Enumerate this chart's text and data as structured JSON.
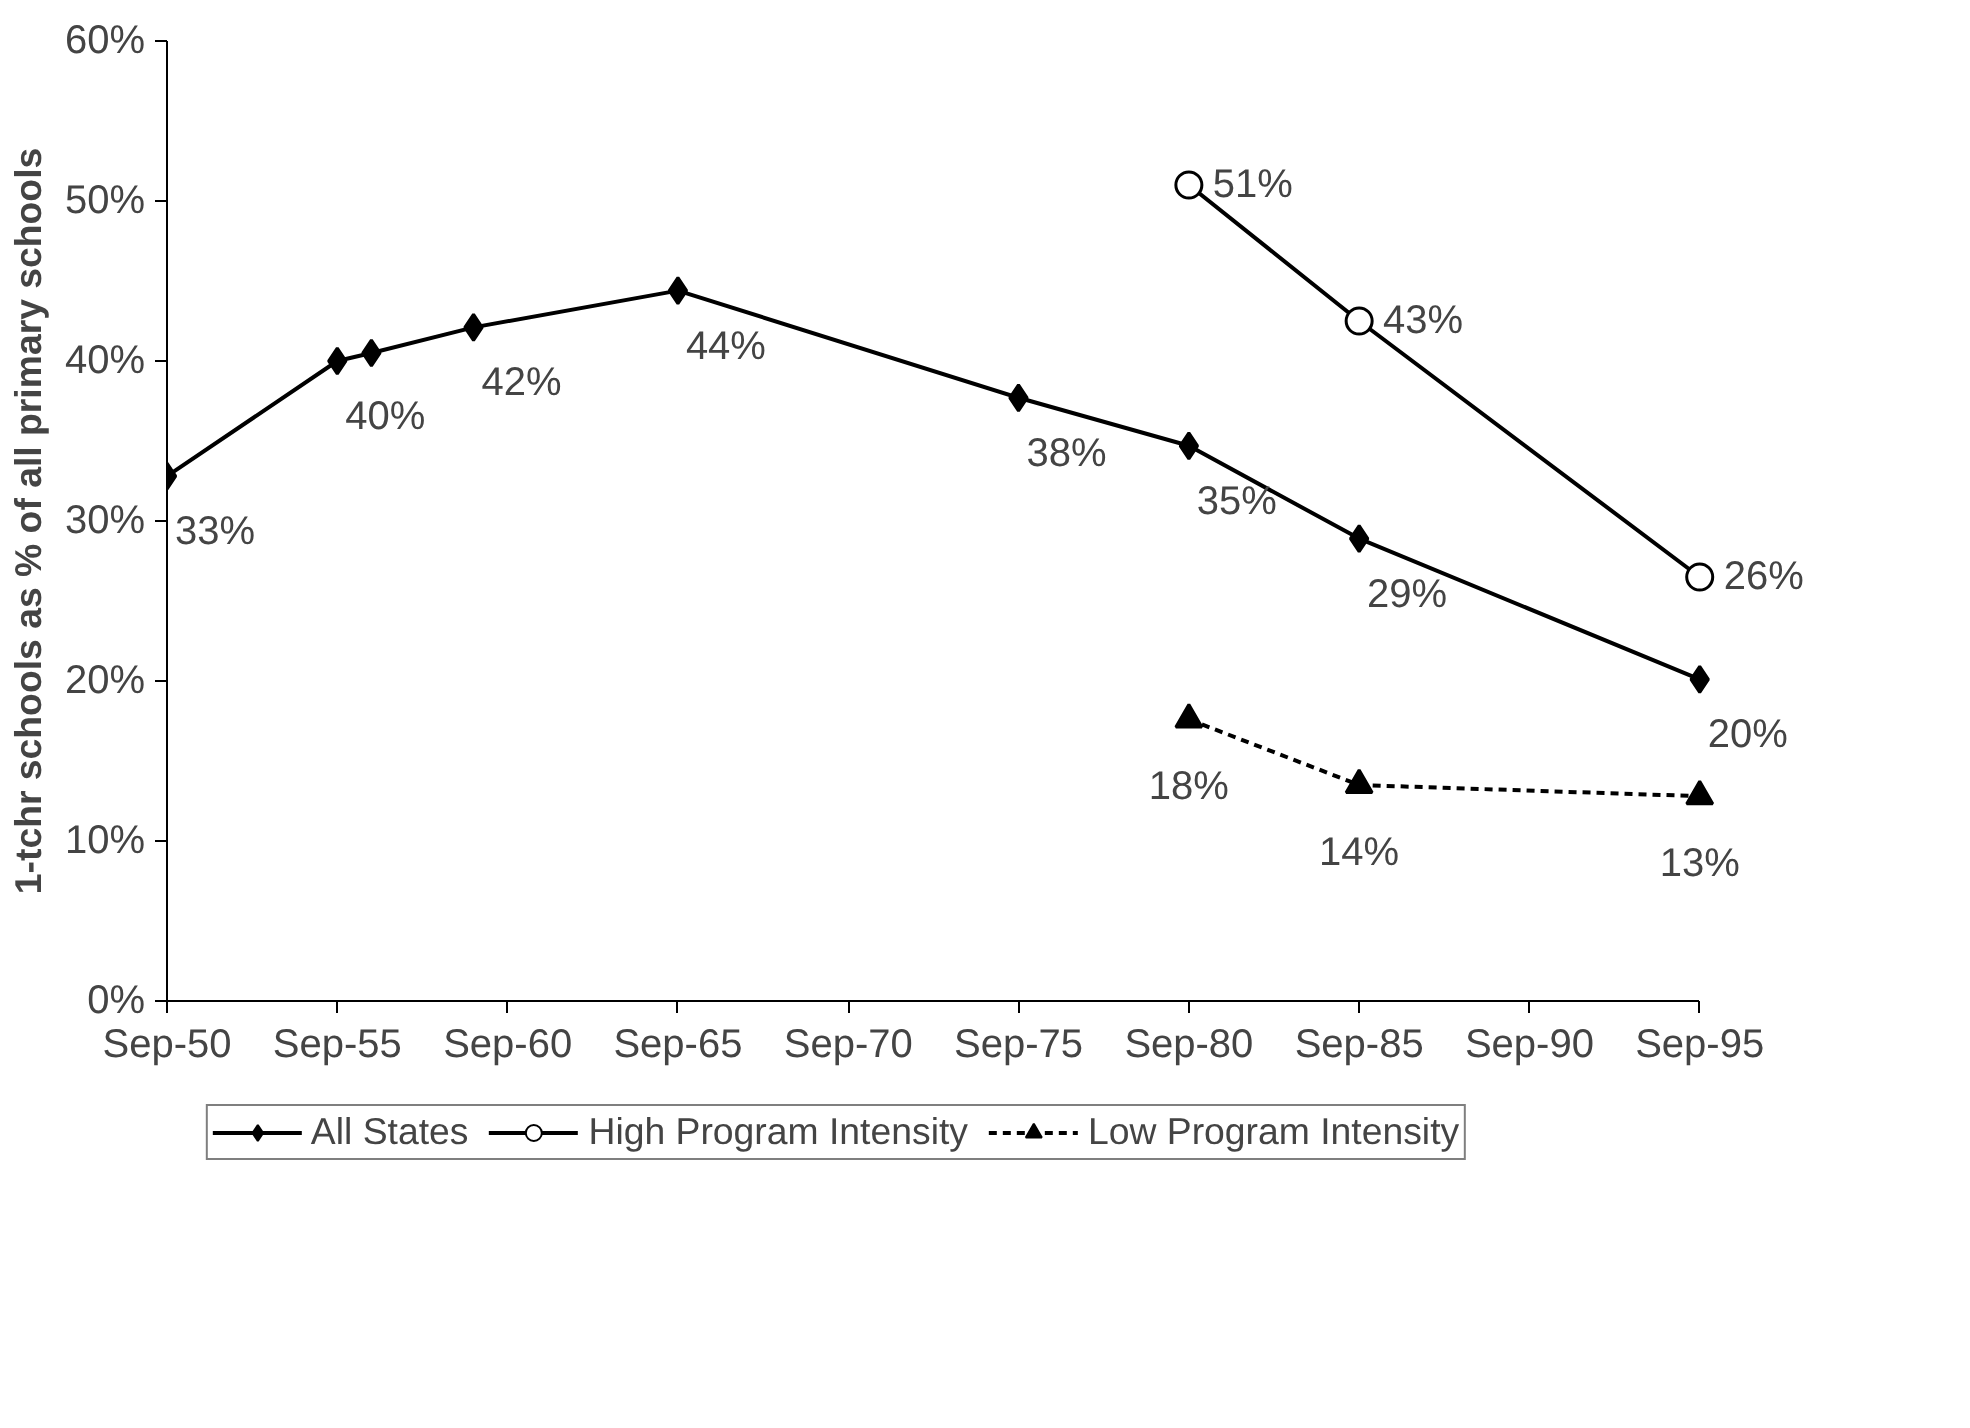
{
  "chart_data": {
    "type": "line",
    "ylabel": "1-tchr schools as % of all primary schools",
    "xlim": [
      "1950-09",
      "1995-09"
    ],
    "xticks": [
      {
        "value": "1950-09",
        "label": "Sep-50"
      },
      {
        "value": "1955-09",
        "label": "Sep-55"
      },
      {
        "value": "1960-09",
        "label": "Sep-60"
      },
      {
        "value": "1965-09",
        "label": "Sep-65"
      },
      {
        "value": "1970-09",
        "label": "Sep-70"
      },
      {
        "value": "1975-09",
        "label": "Sep-75"
      },
      {
        "value": "1980-09",
        "label": "Sep-80"
      },
      {
        "value": "1985-09",
        "label": "Sep-85"
      },
      {
        "value": "1990-09",
        "label": "Sep-90"
      },
      {
        "value": "1995-09",
        "label": "Sep-95"
      }
    ],
    "ylim": [
      0,
      60
    ],
    "yticks": [
      {
        "value": 0,
        "label": "0%"
      },
      {
        "value": 10,
        "label": "10%"
      },
      {
        "value": 20,
        "label": "20%"
      },
      {
        "value": 30,
        "label": "30%"
      },
      {
        "value": 40,
        "label": "40%"
      },
      {
        "value": 50,
        "label": "50%"
      },
      {
        "value": 60,
        "label": "60%"
      }
    ],
    "grid": false,
    "legend": "bottom",
    "series": [
      {
        "name": "All States",
        "color": "#000000",
        "marker": "diamond",
        "line_style": "solid",
        "x": [
          "1950-09",
          "1955-09",
          "1956-09",
          "1959-09",
          "1965-09",
          "1975-09",
          "1980-09",
          "1985-09",
          "1995-09"
        ],
        "values": [
          32.8,
          40.0,
          40.5,
          42.1,
          44.4,
          37.7,
          34.7,
          28.9,
          20.1
        ],
        "value_labels": [
          "33%",
          "40%",
          null,
          "42%",
          "44%",
          "38%",
          "35%",
          "29%",
          "20%"
        ]
      },
      {
        "name": "High Program Intensity",
        "color": "#000000",
        "marker": "circle",
        "line_style": "solid",
        "x": [
          "1980-09",
          "1985-09",
          "1995-09"
        ],
        "values": [
          51,
          42.5,
          26.5
        ],
        "value_labels": [
          "51%",
          "43%",
          "26%"
        ]
      },
      {
        "name": "Low Program Intensity",
        "color": "#000000",
        "marker": "triangle",
        "line_style": "dashed",
        "x": [
          "1980-09",
          "1985-09",
          "1995-09"
        ],
        "values": [
          17.6,
          13.5,
          12.8
        ],
        "value_labels": [
          "18%",
          "14%",
          "13%"
        ]
      }
    ]
  }
}
